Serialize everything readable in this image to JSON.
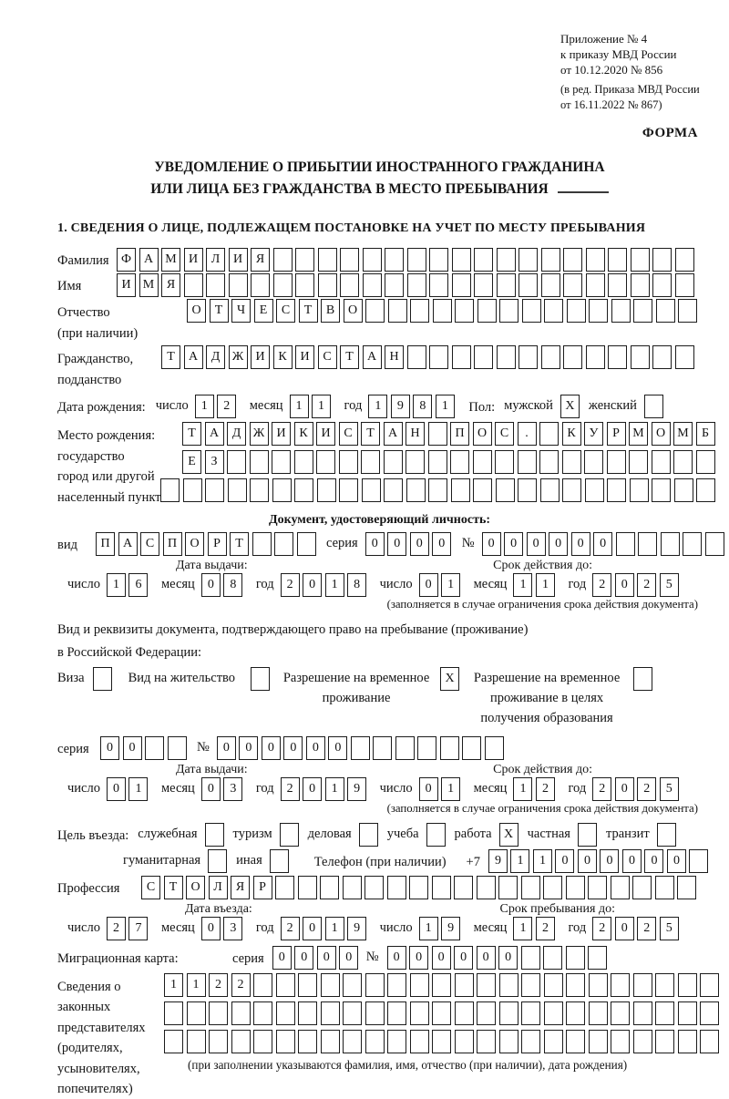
{
  "annex": {
    "line1": "Приложение № 4",
    "line2": "к приказу МВД России",
    "line3": "от 10.12.2020 № 856",
    "note1": "(в ред. Приказа МВД России",
    "note2": "от 16.11.2022 № 867)",
    "form_label": "ФОРМА"
  },
  "title": {
    "line1": "УВЕДОМЛЕНИЕ О ПРИБЫТИИ ИНОСТРАННОГО ГРАЖДАНИНА",
    "line2": "ИЛИ ЛИЦА БЕЗ ГРАЖДАНСТВА В МЕСТО ПРЕБЫВАНИЯ"
  },
  "section1": {
    "heading": "1. СВЕДЕНИЯ О ЛИЦЕ, ПОДЛЕЖАЩЕМ ПОСТАНОВКЕ НА УЧЕТ ПО МЕСТУ ПРЕБЫВАНИЯ",
    "surname": {
      "label": "Фамилия",
      "cells": {
        "value": "ФАМИЛИЯ",
        "count": 26
      }
    },
    "name": {
      "label": "Имя",
      "cells": {
        "value": "ИМЯ",
        "count": 26
      }
    },
    "patronymic": {
      "label1": "Отчество",
      "label2": "(при наличии)",
      "cells": {
        "value": "ОТЧЕСТВО",
        "count": 23
      }
    },
    "citizenship": {
      "label1": "Гражданство,",
      "label2": "подданство",
      "cells": {
        "value": "ТАДЖИКИСТАН",
        "count": 24
      }
    },
    "birth_date": {
      "label": "Дата рождения:",
      "parts": [
        {
          "label": "число",
          "value": "12"
        },
        {
          "label": "месяц",
          "value": "11"
        },
        {
          "label": "год",
          "value": "1981"
        }
      ],
      "sex_label": "Пол:",
      "sex": [
        {
          "name": "male",
          "label": "мужской",
          "checked": true
        },
        {
          "name": "female",
          "label": "женский",
          "checked": false
        }
      ]
    },
    "birth_place": {
      "label1": "Место рождения:",
      "label2": "государство",
      "label3": "город или другой",
      "label4": "населенный пункт",
      "row1": {
        "value": "ТАДЖИКИСТАН ПОС. КУРМОМБ",
        "count": 24
      },
      "row2": {
        "value": "ЕЗ",
        "count": 24
      },
      "row3": {
        "value": "",
        "count": 25
      }
    },
    "identity_doc": {
      "heading": "Документ, удостоверяющий личность:",
      "kind_label": "вид",
      "kind_cells": {
        "value": "ПАСПОРТ",
        "count": 10
      },
      "series_label": "серия",
      "series_cells": {
        "value": "0000",
        "count": 4
      },
      "number_label": "№",
      "number_cells": {
        "value": "000000",
        "count": 11
      },
      "issue_title": "Дата выдачи:",
      "issue_parts": [
        {
          "label": "число",
          "value": "16"
        },
        {
          "label": "месяц",
          "value": "08"
        },
        {
          "label": "год",
          "value": "2018"
        }
      ],
      "expiry_title": "Срок действия до:",
      "expiry_parts": [
        {
          "label": "число",
          "value": "01"
        },
        {
          "label": "месяц",
          "value": "11"
        },
        {
          "label": "год",
          "value": "2025"
        }
      ],
      "note": "(заполняется в случае ограничения срока действия документа)"
    },
    "residence_doc": {
      "intro1": "Вид и реквизиты документа, подтверждающего право на пребывание (проживание)",
      "intro2": "в Российской Федерации:",
      "visa": {
        "label": "Виза",
        "checked": false
      },
      "residence_permit": {
        "label": "Вид на жительство",
        "checked": false
      },
      "temp_permit": {
        "line1": "Разрешение на временное",
        "line2": "проживание",
        "checked": true
      },
      "temp_permit_edu": {
        "line1": "Разрешение на временное",
        "line2": "проживание в целях",
        "line3": "получения образования",
        "checked": false
      },
      "series_label": "серия",
      "series_cells": {
        "value": "00",
        "count": 4
      },
      "number_label": "№",
      "number_cells": {
        "value": "000000",
        "count": 13
      },
      "issue_title": "Дата выдачи:",
      "issue_parts": [
        {
          "label": "число",
          "value": "01"
        },
        {
          "label": "месяц",
          "value": "03"
        },
        {
          "label": "год",
          "value": "2019"
        }
      ],
      "expiry_title": "Срок действия до:",
      "expiry_parts": [
        {
          "label": "число",
          "value": "01"
        },
        {
          "label": "месяц",
          "value": "12"
        },
        {
          "label": "год",
          "value": "2025"
        }
      ],
      "note": "(заполняется в случае ограничения срока действия документа)"
    },
    "purpose": {
      "label": "Цель въезда:",
      "row1": [
        {
          "name": "official",
          "label": "служебная",
          "checked": false
        },
        {
          "name": "tourism",
          "label": "туризм",
          "checked": false
        },
        {
          "name": "business",
          "label": "деловая",
          "checked": false
        },
        {
          "name": "study",
          "label": "учеба",
          "checked": false
        },
        {
          "name": "work",
          "label": "работа",
          "checked": true
        },
        {
          "name": "private",
          "label": "частная",
          "checked": false
        },
        {
          "name": "transit",
          "label": "транзит",
          "checked": false
        }
      ],
      "row2": [
        {
          "name": "humanitarian",
          "label": "гуманитарная",
          "checked": false
        },
        {
          "name": "other",
          "label": "иная",
          "checked": false
        }
      ],
      "phone_label": "Телефон (при наличии)",
      "phone_prefix": "+7",
      "phone_cells": {
        "value": "911000000",
        "count": 10
      }
    },
    "profession": {
      "label": "Профессия",
      "cells": {
        "value": "СТОЛЯР",
        "count": 25
      }
    },
    "entry": {
      "entry_title": "Дата въезда:",
      "entry_parts": [
        {
          "label": "число",
          "value": "27"
        },
        {
          "label": "месяц",
          "value": "03"
        },
        {
          "label": "год",
          "value": "2019"
        }
      ],
      "stay_title": "Срок пребывания до:",
      "stay_parts": [
        {
          "label": "число",
          "value": "19"
        },
        {
          "label": "месяц",
          "value": "12"
        },
        {
          "label": "год",
          "value": "2025"
        }
      ]
    },
    "migration_card": {
      "label": "Миграционная карта:",
      "series_label": "серия",
      "series_cells": {
        "value": "0000",
        "count": 4
      },
      "number_label": "№",
      "number_cells": {
        "value": "000000",
        "count": 10
      }
    },
    "legal_reps": {
      "label1": "Сведения о",
      "label2": "законных",
      "label3": "представителях",
      "label4": "(родителях,",
      "label5": "усыновителях,",
      "label6": "попечителях)",
      "row1": {
        "value": "1122",
        "count": 25
      },
      "row2": {
        "value": "",
        "count": 25
      },
      "row3": {
        "value": "",
        "count": 25
      },
      "note": "(при заполнении указываются фамилия, имя, отчество (при наличии), дата рождения)"
    }
  }
}
